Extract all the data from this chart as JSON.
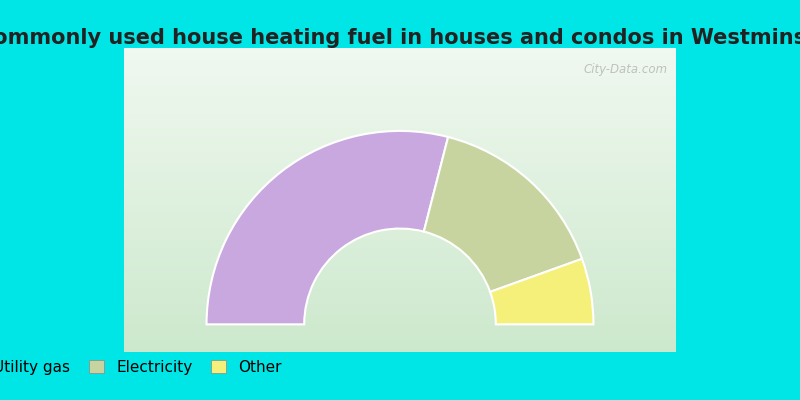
{
  "title": "Most commonly used house heating fuel in houses and condos in Westminster, SC",
  "title_fontsize": 15,
  "segments": [
    {
      "label": "Utility gas",
      "value": 58,
      "color": "#c9a8e0"
    },
    {
      "label": "Electricity",
      "value": 31,
      "color": "#c8d4a0"
    },
    {
      "label": "Other",
      "value": 11,
      "color": "#f5f07a"
    }
  ],
  "background_top": "#cce8cc",
  "background_bottom": "#f0f8f0",
  "border_color": "#00e5e5",
  "legend_fontsize": 11,
  "watermark": "City-Data.com"
}
